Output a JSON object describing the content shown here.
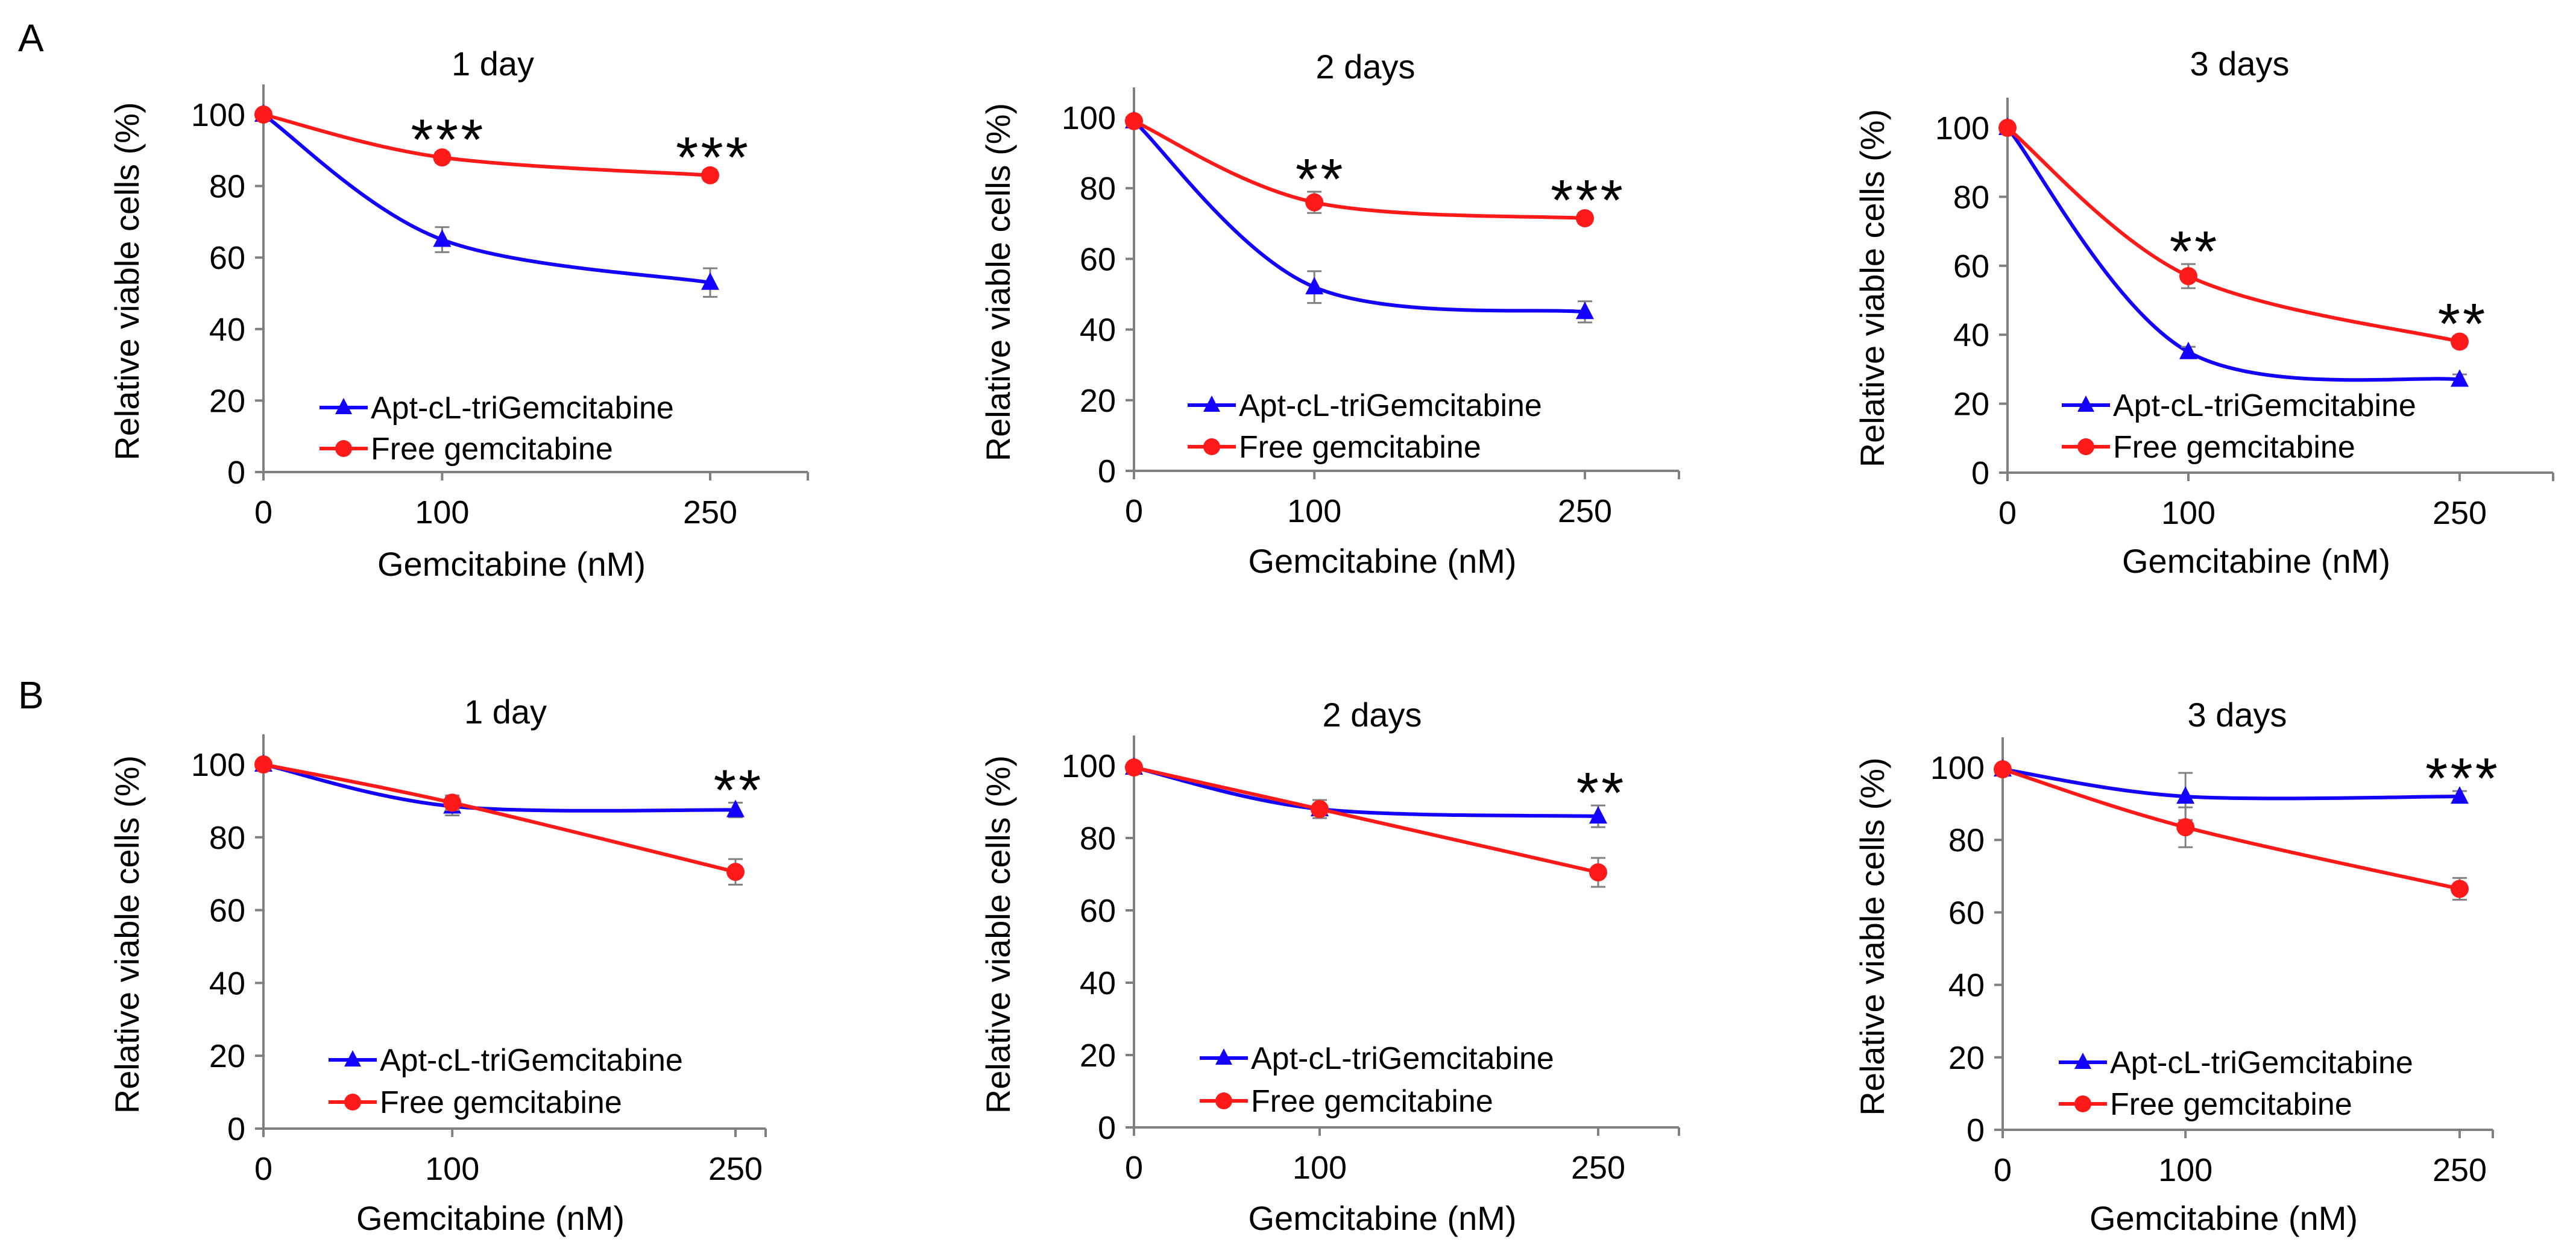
{
  "colors": {
    "apt": "#1400ff",
    "free": "#ff1a1a",
    "axis": "#808080"
  },
  "series_names": [
    "Apt-cL-triGemcitabine",
    "Free gemcitabine"
  ],
  "chart_data": [
    {
      "panel": "A",
      "type": "line",
      "title": "1 day",
      "xlabel": "Gemcitabine (nM)",
      "ylabel": "Relative viable cells (%)",
      "x": [
        "0",
        "100",
        "250"
      ],
      "ylim": [
        0,
        100
      ],
      "yticks": [
        0,
        20,
        40,
        60,
        80,
        100
      ],
      "legend_position": "bottom-left",
      "significance": [
        "",
        "***",
        "***"
      ],
      "series": [
        {
          "name": "Apt-cL-triGemcitabine",
          "values": [
            100,
            65,
            53
          ],
          "errors": [
            0,
            3.5,
            4
          ]
        },
        {
          "name": "Free gemcitabine",
          "values": [
            100,
            88,
            83
          ],
          "errors": [
            0,
            1.5,
            1.5
          ]
        }
      ]
    },
    {
      "panel": "",
      "type": "line",
      "title": "2 days",
      "xlabel": "Gemcitabine (nM)",
      "ylabel": "Relative viable cells (%)",
      "x": [
        "0",
        "100",
        "250"
      ],
      "ylim": [
        0,
        100
      ],
      "yticks": [
        0,
        20,
        40,
        60,
        80,
        100
      ],
      "legend_position": "bottom-left",
      "significance": [
        "",
        "**",
        "***"
      ],
      "series": [
        {
          "name": "Apt-cL-triGemcitabine",
          "values": [
            99,
            52,
            45
          ],
          "errors": [
            0,
            4.5,
            3
          ]
        },
        {
          "name": "Free gemcitabine",
          "values": [
            99,
            76,
            71.5
          ],
          "errors": [
            0,
            3,
            1.5
          ]
        }
      ]
    },
    {
      "panel": "",
      "type": "line",
      "title": "3 days",
      "xlabel": "Gemcitabine (nM)",
      "ylabel": "Relative viable cells (%)",
      "x": [
        "0",
        "100",
        "250"
      ],
      "ylim": [
        0,
        100
      ],
      "yticks": [
        0,
        20,
        40,
        60,
        80,
        100
      ],
      "legend_position": "bottom-left",
      "significance": [
        "",
        "**",
        "**"
      ],
      "series": [
        {
          "name": "Apt-cL-triGemcitabine",
          "values": [
            100,
            35,
            27
          ],
          "errors": [
            0,
            1.5,
            1.5
          ]
        },
        {
          "name": "Free gemcitabine",
          "values": [
            100,
            57,
            38
          ],
          "errors": [
            0,
            3.5,
            1.5
          ]
        }
      ]
    },
    {
      "panel": "B",
      "type": "line",
      "title": "1 day",
      "xlabel": "Gemcitabine (nM)",
      "ylabel": "Relative viable cells (%)",
      "x": [
        "0",
        "100",
        "250"
      ],
      "ylim": [
        0,
        100
      ],
      "yticks": [
        0,
        20,
        40,
        60,
        80,
        100
      ],
      "legend_position": "bottom-left",
      "significance": [
        "",
        "",
        "**"
      ],
      "series": [
        {
          "name": "Apt-cL-triGemcitabine",
          "values": [
            100,
            88.5,
            87.5
          ],
          "errors": [
            0,
            2.5,
            2
          ]
        },
        {
          "name": "Free gemcitabine",
          "values": [
            100,
            89.5,
            70.5
          ],
          "errors": [
            0,
            2,
            3.5
          ]
        }
      ]
    },
    {
      "panel": "",
      "type": "line",
      "title": "2 days",
      "xlabel": "Gemcitabine (nM)",
      "ylabel": "Relative viable cells (%)",
      "x": [
        "0",
        "100",
        "250"
      ],
      "ylim": [
        0,
        100
      ],
      "yticks": [
        0,
        20,
        40,
        60,
        80,
        100
      ],
      "legend_position": "bottom-left",
      "significance": [
        "",
        "",
        "**"
      ],
      "series": [
        {
          "name": "Apt-cL-triGemcitabine",
          "values": [
            99.5,
            88,
            86
          ],
          "errors": [
            0,
            2.5,
            3
          ]
        },
        {
          "name": "Free gemcitabine",
          "values": [
            99.5,
            88,
            70.5
          ],
          "errors": [
            0,
            2.5,
            4
          ]
        }
      ]
    },
    {
      "panel": "",
      "type": "line",
      "title": "3 days",
      "xlabel": "Gemcitabine (nM)",
      "ylabel": "Relative viable cells (%)",
      "x": [
        "0",
        "100",
        "250"
      ],
      "ylim": [
        0,
        100
      ],
      "yticks": [
        0,
        20,
        40,
        60,
        80,
        100
      ],
      "legend_position": "bottom-left",
      "significance": [
        "",
        "",
        "***"
      ],
      "series": [
        {
          "name": "Apt-cL-triGemcitabine",
          "values": [
            99.5,
            92,
            92
          ],
          "errors": [
            0,
            6.5,
            1.5
          ]
        },
        {
          "name": "Free gemcitabine",
          "values": [
            99.5,
            83.5,
            66.5
          ],
          "errors": [
            0,
            5.5,
            3
          ]
        }
      ]
    }
  ]
}
